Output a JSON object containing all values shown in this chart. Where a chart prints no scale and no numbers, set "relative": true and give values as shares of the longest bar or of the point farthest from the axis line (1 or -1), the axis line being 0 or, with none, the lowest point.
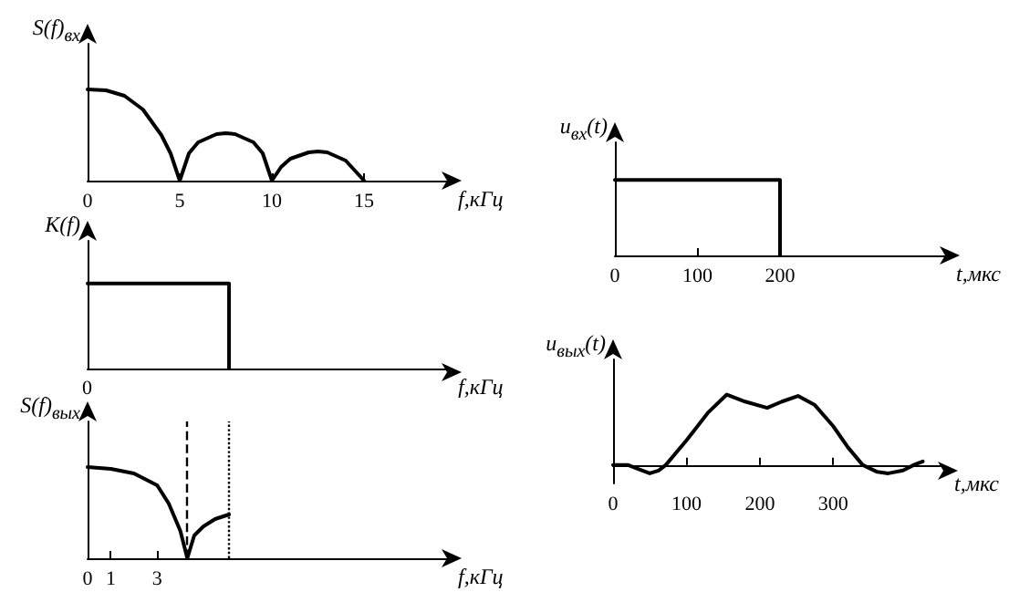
{
  "chart_data": [
    {
      "type": "line",
      "ylabel": "S(f)$_{вх}$",
      "xlabel": "f,кГц",
      "relative": true,
      "marker": "none",
      "xlim": [
        0,
        19.5
      ],
      "xticks": [
        0,
        5,
        10,
        15
      ],
      "x": [
        0,
        1,
        2,
        3,
        4,
        4.5,
        5,
        5.5,
        6,
        7,
        7.5,
        8,
        9,
        9.5,
        10,
        10.5,
        11,
        12,
        12.5,
        13,
        14,
        15
      ],
      "series": [
        {
          "color": "#000000",
          "values": [
            1,
            0.99,
            0.93,
            0.78,
            0.5,
            0.3,
            0,
            0.3,
            0.42,
            0.51,
            0.52,
            0.51,
            0.42,
            0.3,
            0,
            0.15,
            0.24,
            0.31,
            0.32,
            0.31,
            0.22,
            0
          ]
        }
      ]
    },
    {
      "type": "line",
      "ylabel": "K(f)",
      "xlabel": "f,кГц",
      "relative": true,
      "marker": "none",
      "annotations": [
        "0"
      ],
      "xlim": [
        0,
        15.5
      ],
      "x": [
        0,
        6.1,
        6.1
      ],
      "series": [
        {
          "color": "#000000",
          "values": [
            1,
            1,
            0
          ]
        }
      ]
    },
    {
      "type": "line",
      "ylabel": "S(f)$_{вых}$",
      "xlabel": "f,кГц",
      "relative": true,
      "marker": "none",
      "xlim": [
        0,
        15.5
      ],
      "xticks": [
        0,
        1,
        3
      ],
      "x": [
        0,
        1,
        2,
        3,
        3.5,
        4,
        4.3,
        4.6,
        5,
        5.5,
        6.1
      ],
      "series": [
        {
          "color": "#000000",
          "values": [
            1,
            0.98,
            0.93,
            0.8,
            0.6,
            0.3,
            0,
            0.25,
            0.35,
            0.43,
            0.48
          ]
        }
      ],
      "ref_lines": [
        {
          "axis": "x",
          "value": 4.3,
          "line_style": "dashed",
          "color": "#000000"
        },
        {
          "axis": "x",
          "value": 6.1,
          "line_style": "dotted",
          "color": "#000000"
        }
      ]
    },
    {
      "type": "line",
      "ylabel": "u$_{вх}$(t)",
      "xlabel": "t,мкс",
      "relative": true,
      "marker": "none",
      "xlim": [
        0,
        400
      ],
      "xticks": [
        0,
        100,
        200
      ],
      "x": [
        0,
        200,
        200
      ],
      "series": [
        {
          "color": "#000000",
          "values": [
            1,
            1,
            0
          ]
        }
      ]
    },
    {
      "type": "line",
      "ylabel": "u$_{вых}$(t)",
      "xlabel": "t,мкс",
      "relative": true,
      "marker": "none",
      "xlim": [
        0,
        450
      ],
      "xticks": [
        0,
        100,
        200,
        300
      ],
      "x": [
        0,
        20,
        35,
        50,
        62,
        72,
        100,
        130,
        155,
        180,
        210,
        230,
        252,
        275,
        300,
        320,
        340,
        360,
        375,
        395,
        410,
        422
      ],
      "series": [
        {
          "color": "#000000",
          "values": [
            0,
            0,
            -0.06,
            -0.12,
            -0.08,
            0,
            0.35,
            0.75,
            1,
            0.9,
            0.81,
            0.9,
            0.98,
            0.85,
            0.55,
            0.25,
            0,
            -0.1,
            -0.12,
            -0.08,
            0,
            0.05
          ]
        }
      ]
    }
  ]
}
